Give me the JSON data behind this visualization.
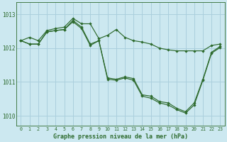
{
  "background_color": "#cce8f0",
  "grid_color": "#aacfdd",
  "line_color": "#2d6a2d",
  "xlabel": "Graphe pression niveau de la mer (hPa)",
  "xlim": [
    -0.5,
    23.5
  ],
  "ylim": [
    1009.7,
    1013.35
  ],
  "yticks": [
    1010,
    1011,
    1012,
    1013
  ],
  "xticks": [
    0,
    1,
    2,
    3,
    4,
    5,
    6,
    7,
    8,
    9,
    10,
    11,
    12,
    13,
    14,
    15,
    16,
    17,
    18,
    19,
    20,
    21,
    22,
    23
  ],
  "s1": [
    1012.22,
    1012.32,
    1012.22,
    1012.52,
    1012.58,
    1012.62,
    1012.88,
    1012.72,
    1012.72,
    1012.28,
    1012.38,
    1012.55,
    1012.32,
    1012.22,
    1012.18,
    1012.12,
    1012.0,
    1011.95,
    1011.92,
    1011.92,
    1011.92,
    1011.92,
    1012.08,
    1012.12
  ],
  "s2": [
    1012.22,
    1012.12,
    1012.12,
    1012.48,
    1012.52,
    1012.55,
    1012.82,
    1012.62,
    1012.12,
    1012.22,
    1011.12,
    1011.08,
    1011.15,
    1011.1,
    1010.62,
    1010.58,
    1010.42,
    1010.38,
    1010.22,
    1010.12,
    1010.38,
    1011.08,
    1011.88,
    1012.05
  ],
  "s3": [
    1012.22,
    1012.12,
    1012.12,
    1012.48,
    1012.52,
    1012.55,
    1012.78,
    1012.58,
    1012.08,
    1012.22,
    1011.08,
    1011.05,
    1011.12,
    1011.05,
    1010.58,
    1010.52,
    1010.38,
    1010.32,
    1010.18,
    1010.08,
    1010.32,
    1011.05,
    1011.85,
    1012.02
  ]
}
